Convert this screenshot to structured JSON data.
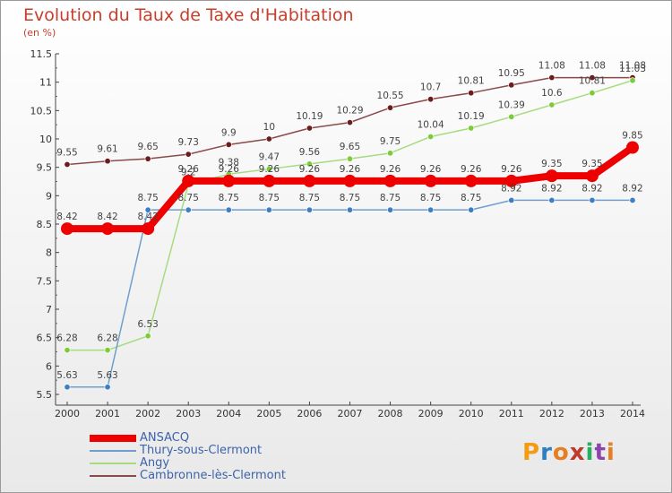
{
  "title": "Evolution du Taux de Taxe d'Habitation",
  "subtitle": "(en %)",
  "logo": [
    "P",
    "r",
    "o",
    "x",
    "i",
    "t",
    "i"
  ],
  "logo_colors": [
    "#f39c12",
    "#2d7fc1",
    "#e67e22",
    "#c0392b",
    "#27ae60",
    "#8e44ad",
    "#e67e22"
  ],
  "chart_data": {
    "type": "line",
    "x": [
      "2000",
      "2001",
      "2002",
      "2003",
      "2004",
      "2005",
      "2006",
      "2007",
      "2008",
      "2009",
      "2010",
      "2011",
      "2012",
      "2013",
      "2014"
    ],
    "ylim": [
      5.5,
      11.5
    ],
    "yticks": [
      "5.5",
      "6",
      "6.5",
      "7",
      "7.5",
      "8",
      "8.5",
      "9",
      "9.5",
      "10",
      "10.5",
      "11",
      "11.5"
    ],
    "grid": false,
    "legend_position": "bottom-left",
    "series": [
      {
        "name": "ANSACQ",
        "color": "#ee0000",
        "width": 8,
        "marker": 7,
        "values": [
          8.42,
          8.42,
          8.42,
          9.26,
          9.26,
          9.26,
          9.26,
          9.26,
          9.26,
          9.26,
          9.26,
          9.26,
          9.35,
          9.35,
          9.85
        ],
        "labels": [
          "8.42",
          "8.42",
          "8.42",
          "9.26",
          "9.26",
          "9.26",
          "9.26",
          "9.26",
          "9.26",
          "9.26",
          "9.26",
          "9.26",
          "9.35",
          "9.35",
          "9.85"
        ]
      },
      {
        "name": "Thury-sous-Clermont",
        "color": "#6f9fce",
        "marker_color": "#3d7fc1",
        "width": 1.5,
        "marker": 3.2,
        "values": [
          5.63,
          5.63,
          8.75,
          8.75,
          8.75,
          8.75,
          8.75,
          8.75,
          8.75,
          8.75,
          8.75,
          8.92,
          8.92,
          8.92,
          8.92
        ],
        "labels": [
          "5.63",
          "5.63",
          "8.75",
          "8.75",
          "8.75",
          "8.75",
          "8.75",
          "8.75",
          "8.75",
          "8.75",
          "8.75",
          "8.92",
          "8.92",
          "8.92",
          "8.92"
        ]
      },
      {
        "name": "Angy",
        "color": "#a6dc7e",
        "marker_color": "#7ccc3a",
        "width": 1.5,
        "marker": 3.2,
        "values": [
          6.28,
          6.28,
          6.53,
          9.2,
          9.38,
          9.47,
          9.56,
          9.65,
          9.75,
          10.04,
          10.19,
          10.39,
          10.6,
          10.81,
          11.03
        ],
        "labels": [
          "6.28",
          "6.28",
          "6.53",
          "9.2",
          "9.38",
          "9.47",
          "9.56",
          "9.65",
          "9.75",
          "10.04",
          "10.19",
          "10.39",
          "10.6",
          "10.81",
          "11.03"
        ]
      },
      {
        "name": "Cambronne-lès-Clermont",
        "color": "#8b4a4a",
        "marker_color": "#6b1c1c",
        "width": 1.5,
        "marker": 3.2,
        "values": [
          9.55,
          9.61,
          9.65,
          9.73,
          9.9,
          10,
          10.19,
          10.29,
          10.55,
          10.7,
          10.81,
          10.95,
          11.08,
          11.08,
          11.08
        ],
        "labels": [
          "9.55",
          "9.61",
          "9.65",
          "9.73",
          "9.9",
          "10",
          "10.19",
          "10.29",
          "10.55",
          "10.7",
          "10.81",
          "10.95",
          "11.08",
          "11.08",
          "11.08"
        ]
      }
    ]
  }
}
